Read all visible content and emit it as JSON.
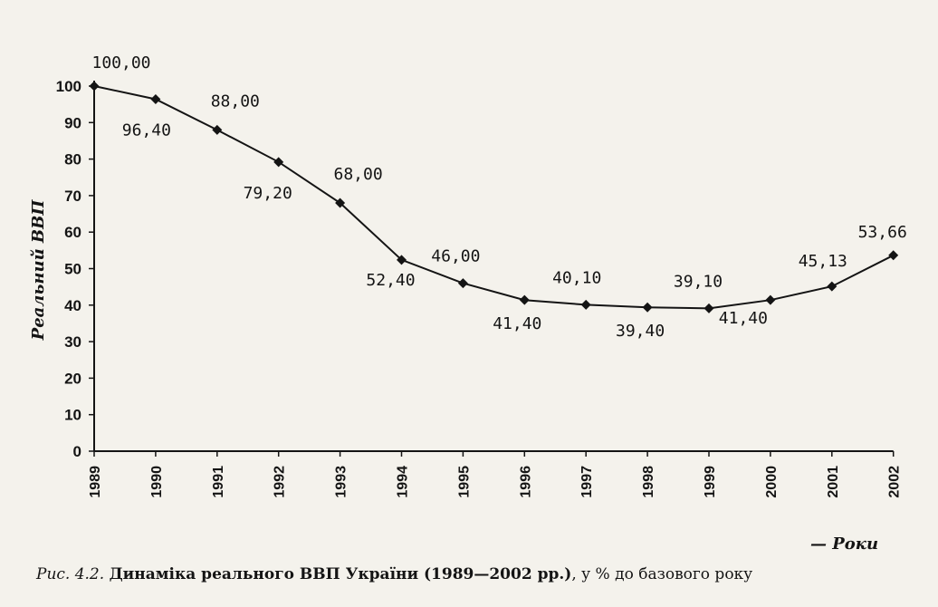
{
  "chart_data": {
    "type": "line",
    "x": [
      "1989",
      "1990",
      "1991",
      "1992",
      "1993",
      "1994",
      "1995",
      "1996",
      "1997",
      "1998",
      "1999",
      "2000",
      "2001",
      "2002"
    ],
    "series": [
      {
        "values": [
          100.0,
          96.4,
          88.0,
          79.2,
          68.0,
          52.4,
          46.0,
          41.4,
          40.1,
          39.4,
          39.1,
          41.4,
          45.13,
          53.66
        ]
      }
    ],
    "data_labels": [
      "100,00",
      "96,40",
      "88,00",
      "79,20",
      "68,00",
      "52,40",
      "46,00",
      "41,40",
      "40,10",
      "39,40",
      "39,10",
      "41,40",
      "45,13",
      "53,66"
    ],
    "ylabel": "Реальний ВВП",
    "xlabel": "— Роки",
    "y_ticks": [
      "0",
      "10",
      "20",
      "30",
      "40",
      "50",
      "60",
      "70",
      "80",
      "90",
      "100"
    ],
    "ylim": [
      0,
      100
    ],
    "grid": false,
    "legend": "none",
    "marker": "diamond",
    "line_color": "#141414"
  },
  "caption": {
    "figure_ref": "Рис. 4.2.",
    "title": "Динаміка реального ВВП України (1989—2002 рр.)",
    "suffix": ", у % до базового року"
  }
}
